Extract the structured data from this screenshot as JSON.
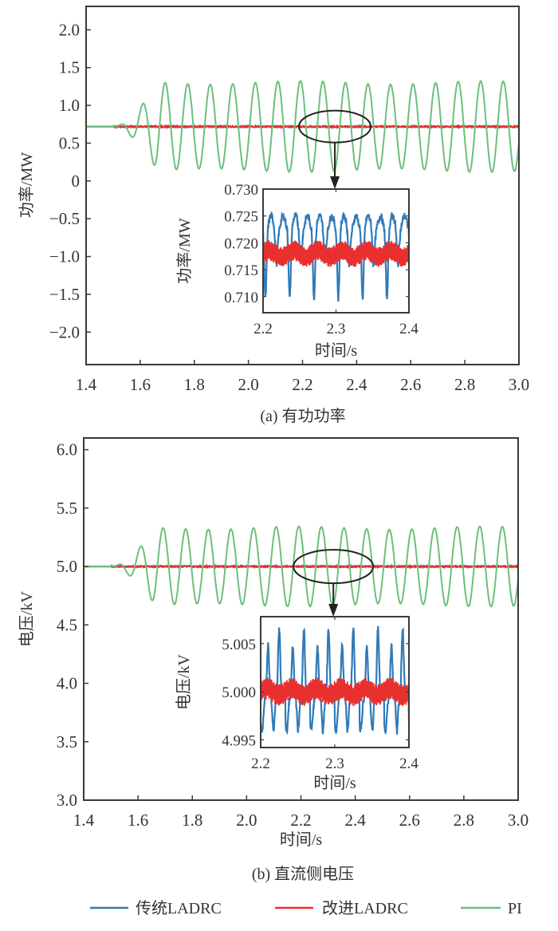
{
  "colors": {
    "traditional_ladrc": "#2f7ab9",
    "improved_ladrc": "#e8302f",
    "pi": "#6cbf7a",
    "axis": "#3a3a3a"
  },
  "legend": {
    "items": [
      {
        "label": "传统LADRC",
        "color_key": "traditional_ladrc"
      },
      {
        "label": "改进LADRC",
        "color_key": "improved_ladrc"
      },
      {
        "label": "PI",
        "color_key": "pi"
      }
    ]
  },
  "chart_data": [
    {
      "type": "line",
      "caption": "(a) 有功功率",
      "ylabel": "功率/MW",
      "xlabel": "",
      "xlim": [
        1.4,
        3.0
      ],
      "ylim": [
        -2.43,
        2.31
      ],
      "x_ticks": [
        "1.4",
        "1.6",
        "1.8",
        "2.0",
        "2.2",
        "2.4",
        "2.6",
        "2.8",
        "3.0"
      ],
      "y_ticks": [
        "2.0",
        "1.5",
        "1.0",
        "0.5",
        "0",
        "-0.5",
        "-1.0",
        "-1.5",
        "-2.0"
      ],
      "y_tick_labels": [
        "2.0",
        "1.5",
        "1.0",
        "0.5",
        "0",
        "−0.5",
        "−1.0",
        "−1.5",
        "−2.0"
      ],
      "series": [
        {
          "name": "传统LADRC",
          "steady_value": 0.72,
          "disturbance_start": 1.5
        },
        {
          "name": "改进LADRC",
          "steady_value": 0.718,
          "disturbance_start": 1.5
        },
        {
          "name": "PI",
          "steady_value": 0.72,
          "disturbance_start": 1.5,
          "oscillation_center": 0.72,
          "oscillation_amplitude": 0.58,
          "oscillation_period_s": 0.0833,
          "peaks": [
            [
              1.52,
              0.8
            ],
            [
              1.56,
              1.01
            ],
            [
              1.68,
              1.34
            ],
            [
              1.77,
              1.31
            ],
            [
              1.85,
              1.35
            ],
            [
              1.94,
              1.31
            ],
            [
              2.02,
              1.28
            ]
          ],
          "troughs": [
            [
              1.55,
              0.52
            ],
            [
              1.63,
              0.24
            ],
            [
              1.72,
              0.17
            ],
            [
              1.81,
              0.1
            ],
            [
              1.89,
              0.16
            ],
            [
              1.98,
              0.18
            ]
          ]
        }
      ],
      "inset": {
        "xlabel": "时间/s",
        "ylabel": "功率/MW",
        "xlim": [
          2.2,
          2.4
        ],
        "ylim": [
          0.707,
          0.73
        ],
        "x_ticks": [
          "2.2",
          "2.3",
          "2.4"
        ],
        "y_ticks": [
          "0.730",
          "0.725",
          "0.720",
          "0.715",
          "0.710"
        ],
        "series": [
          {
            "name": "传统LADRC",
            "center": 0.7215,
            "max": 0.7275,
            "min": 0.709,
            "period_s": 0.0333
          },
          {
            "name": "改进LADRC",
            "center": 0.718,
            "max": 0.72,
            "min": 0.716,
            "period_s": 0.0333
          }
        ],
        "zoom_region": {
          "x_center": 2.29,
          "y_center": 0.72
        }
      }
    },
    {
      "type": "line",
      "caption": "(b) 直流侧电压",
      "ylabel": "电压/kV",
      "xlabel": "时间/s",
      "xlim": [
        1.4,
        3.0
      ],
      "ylim": [
        3.0,
        6.1
      ],
      "x_ticks": [
        "1.4",
        "1.6",
        "1.8",
        "2.0",
        "2.2",
        "2.4",
        "2.6",
        "2.8",
        "3.0"
      ],
      "y_ticks": [
        "6.0",
        "5.5",
        "5.0",
        "4.5",
        "4.0",
        "3.5",
        "3.0"
      ],
      "series": [
        {
          "name": "传统LADRC",
          "steady_value": 5.0,
          "disturbance_start": 1.5
        },
        {
          "name": "改进LADRC",
          "steady_value": 5.0,
          "disturbance_start": 1.5
        },
        {
          "name": "PI",
          "steady_value": 5.0,
          "disturbance_start": 1.5,
          "oscillation_center": 5.0,
          "oscillation_amplitude": 0.33,
          "oscillation_period_s": 0.0833,
          "peaks": [
            [
              1.51,
              5.03
            ],
            [
              1.58,
              5.14
            ],
            [
              1.66,
              5.38
            ],
            [
              1.74,
              5.36
            ],
            [
              1.83,
              5.39
            ],
            [
              1.91,
              5.37
            ],
            [
              2.0,
              5.36
            ]
          ],
          "troughs": [
            [
              1.54,
              4.94
            ],
            [
              1.62,
              4.83
            ],
            [
              1.7,
              4.68
            ],
            [
              1.79,
              4.68
            ],
            [
              1.87,
              4.66
            ],
            [
              1.96,
              4.67
            ]
          ]
        }
      ],
      "inset": {
        "xlabel": "时间/s",
        "ylabel": "电压/kV",
        "xlim": [
          2.2,
          2.4
        ],
        "ylim": [
          4.9942,
          5.0078
        ],
        "x_ticks": [
          "2.2",
          "2.3",
          "2.4"
        ],
        "y_ticks": [
          "5.005",
          "5.000",
          "4.995"
        ],
        "series": [
          {
            "name": "传统LADRC",
            "center": 4.9995,
            "max": 5.0066,
            "min": 4.995,
            "period_s": 0.0333
          },
          {
            "name": "改进LADRC",
            "center": 5.0,
            "max": 5.0012,
            "min": 4.9988,
            "period_s": 0.0333
          }
        ],
        "zoom_region": {
          "x_center": 2.29,
          "y_center": 5.0
        }
      }
    }
  ]
}
